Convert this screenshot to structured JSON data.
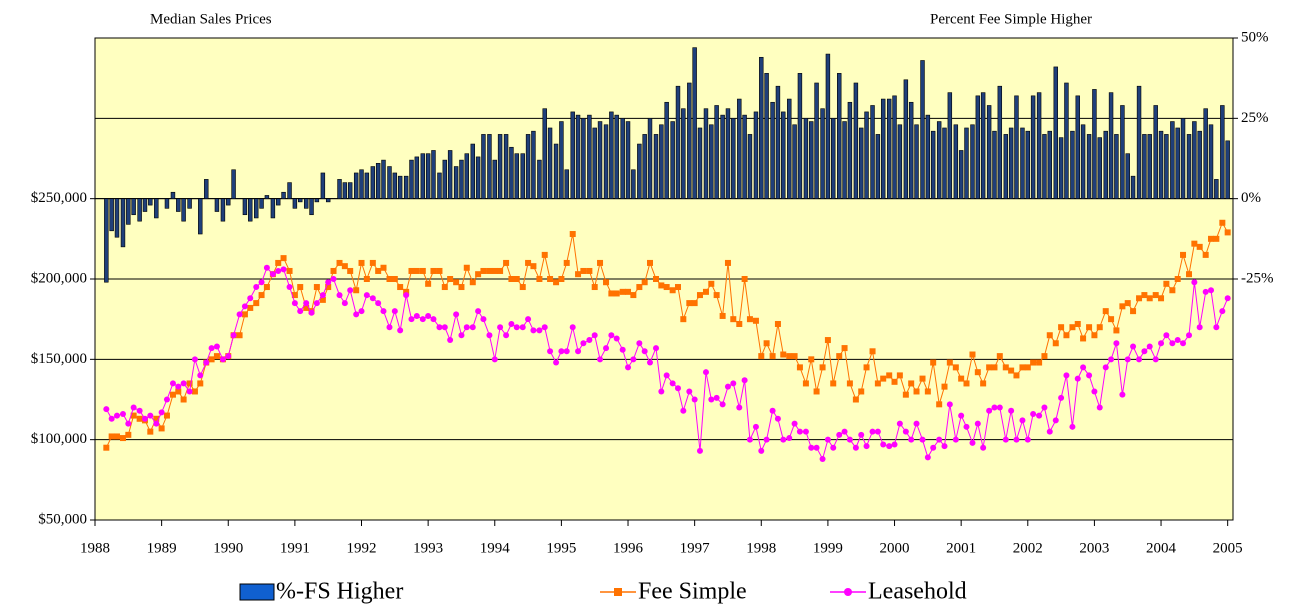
{
  "chart_data": {
    "type": "combo",
    "title": "Median Sales Prices",
    "y2_title": "Percent Fee Simple Higher",
    "xlim": [
      1988,
      2005.08
    ],
    "xticks": [
      1988,
      1989,
      1990,
      1991,
      1992,
      1993,
      1994,
      1995,
      1996,
      1997,
      1998,
      1999,
      2000,
      2001,
      2002,
      2003,
      2004,
      2005
    ],
    "ylim": [
      50000,
      350000
    ],
    "yticks": [
      {
        "value": 50000,
        "label": "$50,000"
      },
      {
        "value": 100000,
        "label": "$100,000"
      },
      {
        "value": 150000,
        "label": "$150,000"
      },
      {
        "value": 200000,
        "label": "$200,000"
      },
      {
        "value": 250000,
        "label": "$250,000"
      }
    ],
    "y2lim": [
      -100,
      50
    ],
    "y2ticks": [
      {
        "value": -25,
        "label": "-25%"
      },
      {
        "value": 0,
        "label": "0%"
      },
      {
        "value": 25,
        "label": "25%"
      },
      {
        "value": 50,
        "label": "50%"
      }
    ],
    "grid": true,
    "legend": "bottom",
    "background": "#ffffc0",
    "x": [
      1988.17,
      1988.25,
      1988.33,
      1988.42,
      1988.5,
      1988.58,
      1988.67,
      1988.75,
      1988.83,
      1988.92,
      1989,
      1989.08,
      1989.17,
      1989.25,
      1989.33,
      1989.42,
      1989.5,
      1989.58,
      1989.67,
      1989.75,
      1989.83,
      1989.92,
      1990,
      1990.08,
      1990.17,
      1990.25,
      1990.33,
      1990.42,
      1990.5,
      1990.58,
      1990.67,
      1990.75,
      1990.83,
      1990.92,
      1991,
      1991.08,
      1991.17,
      1991.25,
      1991.33,
      1991.42,
      1991.5,
      1991.58,
      1991.67,
      1991.75,
      1991.83,
      1991.92,
      1992,
      1992.08,
      1992.17,
      1992.25,
      1992.33,
      1992.42,
      1992.5,
      1992.58,
      1992.67,
      1992.75,
      1992.83,
      1992.92,
      1993,
      1993.08,
      1993.17,
      1993.25,
      1993.33,
      1993.42,
      1993.5,
      1993.58,
      1993.67,
      1993.75,
      1993.83,
      1993.92,
      1994,
      1994.08,
      1994.17,
      1994.25,
      1994.33,
      1994.42,
      1994.5,
      1994.58,
      1994.67,
      1994.75,
      1994.83,
      1994.92,
      1995,
      1995.08,
      1995.17,
      1995.25,
      1995.33,
      1995.42,
      1995.5,
      1995.58,
      1995.67,
      1995.75,
      1995.83,
      1995.92,
      1996,
      1996.08,
      1996.17,
      1996.25,
      1996.33,
      1996.42,
      1996.5,
      1996.58,
      1996.67,
      1996.75,
      1996.83,
      1996.92,
      1997,
      1997.08,
      1997.17,
      1997.25,
      1997.33,
      1997.42,
      1997.5,
      1997.58,
      1997.67,
      1997.75,
      1997.83,
      1997.92,
      1998,
      1998.08,
      1998.17,
      1998.25,
      1998.33,
      1998.42,
      1998.5,
      1998.58,
      1998.67,
      1998.75,
      1998.83,
      1998.92,
      1999,
      1999.08,
      1999.17,
      1999.25,
      1999.33,
      1999.42,
      1999.5,
      1999.58,
      1999.67,
      1999.75,
      1999.83,
      1999.92,
      2000,
      2000.08,
      2000.17,
      2000.25,
      2000.33,
      2000.42,
      2000.5,
      2000.58,
      2000.67,
      2000.75,
      2000.83,
      2000.92,
      2001,
      2001.08,
      2001.17,
      2001.25,
      2001.33,
      2001.42,
      2001.5,
      2001.58,
      2001.67,
      2001.75,
      2001.83,
      2001.92,
      2002,
      2002.08,
      2002.17,
      2002.25,
      2002.33,
      2002.42,
      2002.5,
      2002.58,
      2002.67,
      2002.75,
      2002.83,
      2002.92,
      2003,
      2003.08,
      2003.17,
      2003.25,
      2003.33,
      2003.42,
      2003.5,
      2003.58,
      2003.67,
      2003.75,
      2003.83,
      2003.92,
      2004,
      2004.08,
      2004.17,
      2004.25,
      2004.33,
      2004.42,
      2004.5,
      2004.58,
      2004.67,
      2004.75,
      2004.83,
      2004.92,
      2005
    ],
    "series": [
      {
        "name": "%-FS Higher",
        "type": "bar",
        "axis": "y2",
        "color": "#1f3f7a",
        "values": [
          -26,
          -10,
          -12,
          -15,
          -8,
          -5,
          -7,
          -4,
          -2,
          -6,
          0,
          -3,
          2,
          -4,
          -7,
          -3,
          0,
          -11,
          6,
          0,
          -4,
          -7,
          -2,
          9,
          0,
          -5,
          -7,
          -6,
          -3,
          1,
          -6,
          -2,
          2,
          5,
          -3,
          -1,
          -3,
          -5,
          -1,
          8,
          -1,
          0,
          6,
          5,
          5,
          8,
          9,
          8,
          10,
          11,
          12,
          10,
          8,
          7,
          7,
          12,
          13,
          14,
          14,
          15,
          8,
          12,
          15,
          10,
          12,
          14,
          17,
          13,
          20,
          20,
          12,
          20,
          20,
          16,
          14,
          14,
          20,
          21,
          12,
          28,
          22,
          17,
          24,
          9,
          27,
          26,
          25,
          26,
          22,
          24,
          23,
          27,
          26,
          25,
          24,
          9,
          17,
          20,
          25,
          20,
          23,
          30,
          24,
          35,
          28,
          36,
          47,
          22,
          28,
          23,
          29,
          26,
          28,
          25,
          31,
          26,
          20,
          27,
          44,
          39,
          30,
          35,
          27,
          31,
          23,
          39,
          25,
          24,
          36,
          28,
          45,
          25,
          39,
          24,
          30,
          36,
          22,
          27,
          29,
          20,
          31,
          31,
          32,
          23,
          37,
          30,
          23,
          43,
          26,
          21,
          24,
          22,
          33,
          23,
          15,
          22,
          23,
          32,
          33,
          29,
          21,
          35,
          20,
          22,
          32,
          22,
          21,
          32,
          33,
          20,
          21,
          41,
          19,
          36,
          21,
          32,
          23,
          20,
          34,
          19,
          21,
          33,
          20,
          29,
          14,
          7,
          35,
          20,
          20,
          29,
          21,
          20,
          24,
          22,
          25,
          20,
          24,
          21,
          28,
          23,
          6,
          29,
          18
        ]
      },
      {
        "name": "Fee Simple",
        "type": "line",
        "marker": "square",
        "color": "#ff7200",
        "values": [
          95000,
          102000,
          102000,
          101000,
          103000,
          115000,
          113000,
          112000,
          105000,
          113000,
          107000,
          115000,
          128000,
          130000,
          125000,
          135000,
          130000,
          135000,
          148000,
          150000,
          152000,
          150000,
          152000,
          165000,
          165000,
          178000,
          182000,
          185000,
          190000,
          195000,
          203000,
          210000,
          213000,
          205000,
          190000,
          195000,
          182000,
          180000,
          195000,
          187000,
          195000,
          205000,
          210000,
          208000,
          205000,
          193000,
          210000,
          200000,
          210000,
          205000,
          207000,
          200000,
          200000,
          195000,
          192000,
          205000,
          205000,
          205000,
          197000,
          205000,
          205000,
          195000,
          200000,
          198000,
          195000,
          207000,
          198000,
          203000,
          205000,
          205000,
          205000,
          205000,
          210000,
          200000,
          200000,
          195000,
          210000,
          208000,
          200000,
          215000,
          200000,
          198000,
          200000,
          210000,
          228000,
          203000,
          205000,
          205000,
          195000,
          210000,
          198000,
          191000,
          191000,
          192000,
          192000,
          190000,
          195000,
          198000,
          210000,
          200000,
          196000,
          195000,
          193000,
          195000,
          175000,
          185000,
          185000,
          190000,
          192000,
          197000,
          190000,
          177000,
          210000,
          175000,
          172000,
          200000,
          175000,
          174000,
          152000,
          160000,
          152000,
          172000,
          153000,
          152000,
          152000,
          145000,
          135000,
          150000,
          130000,
          145000,
          162000,
          135000,
          152000,
          157000,
          135000,
          125000,
          130000,
          145000,
          155000,
          135000,
          138000,
          140000,
          136000,
          140000,
          128000,
          135000,
          130000,
          138000,
          130000,
          148000,
          122000,
          133000,
          148000,
          145000,
          138000,
          135000,
          153000,
          142000,
          135000,
          145000,
          145000,
          152000,
          145000,
          143000,
          140000,
          145000,
          145000,
          148000,
          148000,
          152000,
          165000,
          160000,
          170000,
          165000,
          170000,
          172000,
          163000,
          170000,
          165000,
          170000,
          180000,
          175000,
          168000,
          183000,
          185000,
          180000,
          188000,
          190000,
          188000,
          190000,
          188000,
          197000,
          193000,
          200000,
          215000,
          203000,
          222000,
          220000,
          215000,
          225000,
          225000,
          235000,
          229000
        ]
      },
      {
        "name": "Leasehold",
        "type": "line",
        "marker": "circle",
        "color": "#ff00ff",
        "values": [
          119000,
          113000,
          115000,
          116000,
          110000,
          120000,
          118000,
          113000,
          115000,
          110000,
          117000,
          125000,
          135000,
          133000,
          135000,
          130000,
          150000,
          140000,
          148000,
          157000,
          158000,
          150000,
          152000,
          165000,
          178000,
          183000,
          188000,
          195000,
          198000,
          207000,
          203000,
          205000,
          206000,
          195000,
          185000,
          180000,
          185000,
          179000,
          185000,
          190000,
          198000,
          200000,
          190000,
          185000,
          193000,
          178000,
          180000,
          190000,
          188000,
          185000,
          180000,
          170000,
          180000,
          168000,
          190000,
          175000,
          177000,
          175000,
          177000,
          175000,
          170000,
          170000,
          162000,
          178000,
          165000,
          170000,
          170000,
          180000,
          175000,
          165000,
          150000,
          170000,
          165000,
          172000,
          170000,
          170000,
          175000,
          168000,
          168000,
          170000,
          155000,
          148000,
          155000,
          155000,
          170000,
          155000,
          160000,
          162000,
          165000,
          150000,
          157000,
          165000,
          163000,
          156000,
          145000,
          150000,
          160000,
          155000,
          148000,
          157000,
          130000,
          140000,
          135000,
          132000,
          118000,
          130000,
          125000,
          93000,
          142000,
          125000,
          126000,
          122000,
          133000,
          135000,
          120000,
          137000,
          100000,
          108000,
          93000,
          100000,
          118000,
          113000,
          100000,
          101000,
          110000,
          105000,
          105000,
          95000,
          95000,
          88000,
          100000,
          95000,
          103000,
          105000,
          100000,
          95000,
          103000,
          96000,
          105000,
          105000,
          97000,
          96000,
          97000,
          110000,
          105000,
          100000,
          110000,
          100000,
          89000,
          95000,
          100000,
          96000,
          122000,
          100000,
          115000,
          108000,
          98000,
          110000,
          95000,
          118000,
          120000,
          120000,
          100000,
          118000,
          100000,
          112000,
          100000,
          116000,
          115000,
          120000,
          105000,
          112000,
          126000,
          140000,
          108000,
          138000,
          145000,
          140000,
          130000,
          120000,
          145000,
          150000,
          160000,
          128000,
          150000,
          158000,
          150000,
          155000,
          158000,
          150000,
          160000,
          165000,
          160000,
          162000,
          160000,
          165000,
          198000,
          170000,
          192000,
          193000,
          170000,
          180000,
          188000
        ]
      }
    ]
  }
}
